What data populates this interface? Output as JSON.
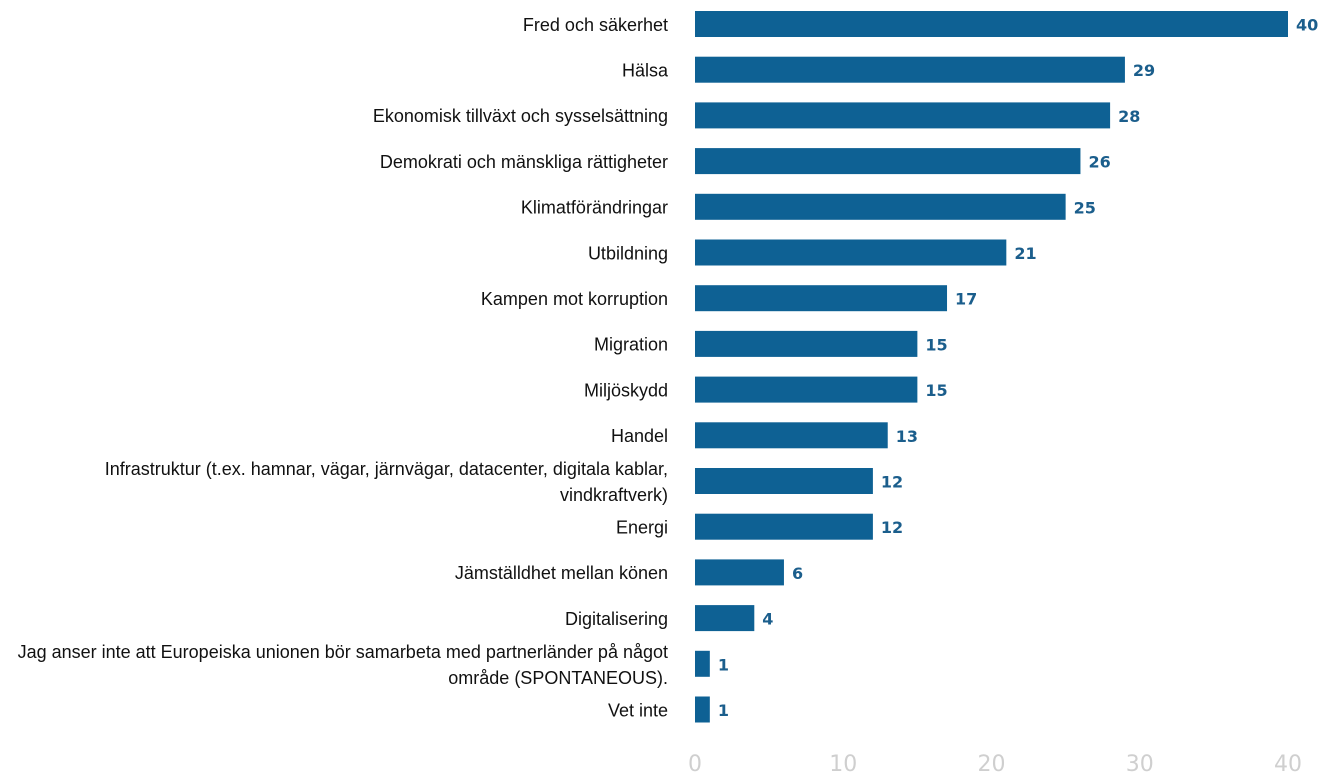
{
  "chart_data": {
    "type": "bar",
    "orientation": "horizontal",
    "categories": [
      "Fred och säkerhet",
      "Hälsa",
      "Ekonomisk tillväxt och sysselsättning",
      "Demokrati och mänskliga rättigheter",
      "Klimatförändringar",
      "Utbildning",
      "Kampen mot korruption",
      "Migration",
      "Miljöskydd",
      "Handel",
      "Infrastruktur (t.ex. hamnar, vägar, järnvägar, datacenter, digitala kablar, vindkraftverk)",
      "Energi",
      "Jämställdhet mellan könen",
      "Digitalisering",
      "Jag anser inte att Europeiska unionen bör samarbeta med partnerländer på något område (SPONTANEOUS).",
      "Vet inte"
    ],
    "values": [
      40,
      29,
      28,
      26,
      25,
      21,
      17,
      15,
      15,
      13,
      12,
      12,
      6,
      4,
      1,
      1
    ],
    "color": "#0e6194",
    "xlim": [
      0,
      40
    ],
    "xticks": [
      0,
      10,
      20,
      30,
      40
    ],
    "grid": false
  }
}
